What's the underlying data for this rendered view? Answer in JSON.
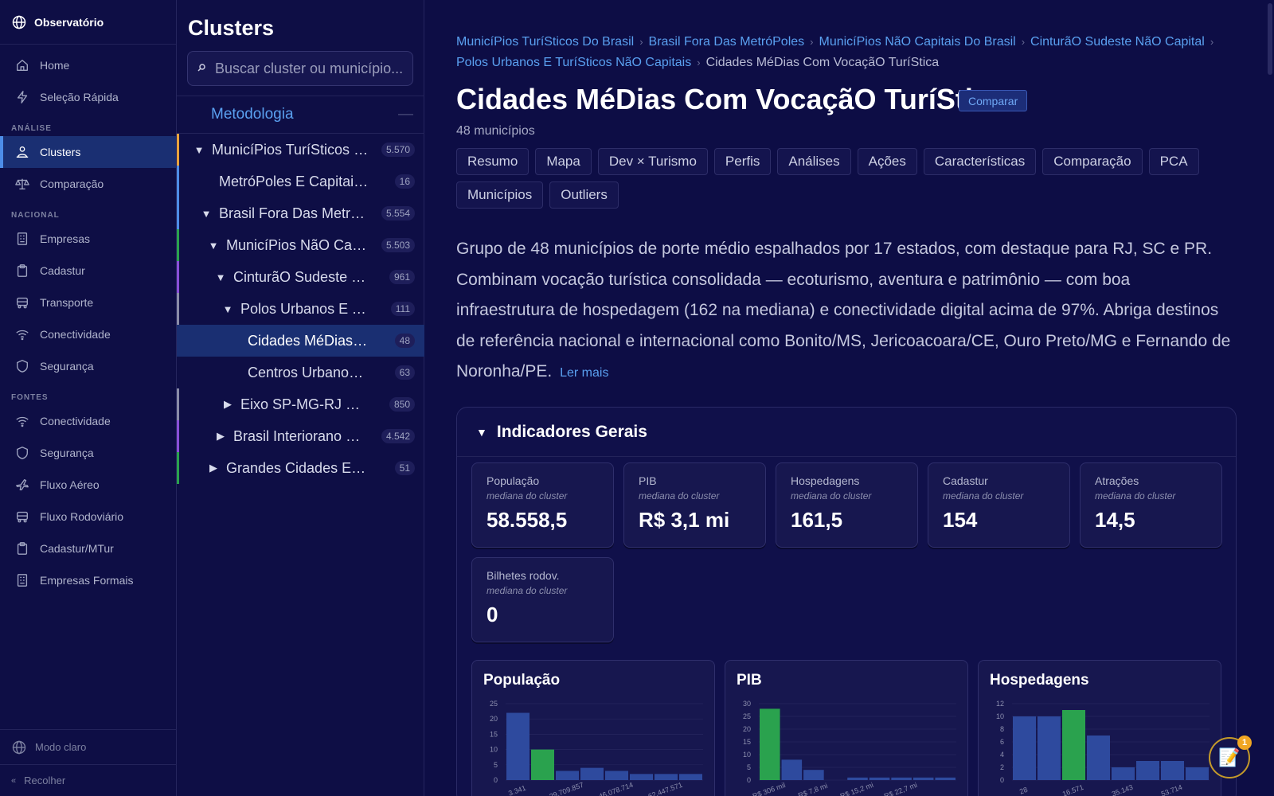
{
  "app": {
    "name": "Observatório"
  },
  "nav": {
    "top_items": [
      {
        "label": "Home",
        "icon": "home-icon"
      },
      {
        "label": "Seleção Rápida",
        "icon": "bolt-icon"
      }
    ],
    "section_analise": "ANÁLISE",
    "analise_items": [
      {
        "label": "Clusters",
        "icon": "clusters-icon",
        "active": true
      },
      {
        "label": "Comparação",
        "icon": "scale-icon"
      }
    ],
    "section_nacional": "NACIONAL",
    "nacional_items": [
      {
        "label": "Empresas",
        "icon": "building-icon"
      },
      {
        "label": "Cadastur",
        "icon": "clipboard-icon"
      },
      {
        "label": "Transporte",
        "icon": "bus-icon"
      },
      {
        "label": "Conectividade",
        "icon": "wifi-icon"
      },
      {
        "label": "Segurança",
        "icon": "shield-icon"
      }
    ],
    "section_fontes": "FONTES",
    "fontes_items": [
      {
        "label": "Conectividade",
        "icon": "wifi-icon"
      },
      {
        "label": "Segurança",
        "icon": "shield-icon"
      },
      {
        "label": "Fluxo Aéreo",
        "icon": "plane-icon"
      },
      {
        "label": "Fluxo Rodoviário",
        "icon": "bus-icon"
      },
      {
        "label": "Cadastur/MTur",
        "icon": "clipboard-icon"
      },
      {
        "label": "Empresas Formais",
        "icon": "building-icon"
      }
    ],
    "theme_toggle": "Modo claro",
    "collapse": "Recolher"
  },
  "clusters": {
    "title": "Clusters",
    "search_placeholder": "Buscar cluster ou município...",
    "methodology": "Metodologia",
    "tree": [
      {
        "label": "MunicíPios TuríSticos Do Brasil",
        "count": "5.570",
        "indent": 0,
        "arrow": "▼",
        "color": "#e8a33d"
      },
      {
        "label": "MetróPoles E Capitais Estaduais",
        "count": "16",
        "indent": 1,
        "arrow": "",
        "color": "#4d8de8"
      },
      {
        "label": "Brasil Fora Das MetróPoles",
        "count": "5.554",
        "indent": 1,
        "arrow": "▼",
        "color": "#4d8de8"
      },
      {
        "label": "MunicíPios NãO Capitais Do Brasil",
        "count": "5.503",
        "indent": 2,
        "arrow": "▼",
        "color": "#2aa24e"
      },
      {
        "label": "CinturãO Sudeste NãO Capital",
        "count": "961",
        "indent": 3,
        "arrow": "▼",
        "color": "#8a4fd8"
      },
      {
        "label": "Polos Urbanos E TuríSticos NãO Capitais",
        "count": "111",
        "indent": 4,
        "arrow": "▼",
        "color": "#8a8ca8"
      },
      {
        "label": "Cidades MéDias Com VocaçãO TuríStica",
        "count": "48",
        "indent": 5,
        "arrow": "",
        "color": "",
        "selected": true
      },
      {
        "label": "Centros Urbanos NãO Capitais",
        "count": "63",
        "indent": 5,
        "arrow": "",
        "color": ""
      },
      {
        "label": "Eixo SP-MG-RJ De Pequeno Porte",
        "count": "850",
        "indent": 4,
        "arrow": "▶",
        "color": "#8a8ca8"
      },
      {
        "label": "Brasil Interiorano Disperso",
        "count": "4.542",
        "indent": 3,
        "arrow": "▶",
        "color": "#8a4fd8"
      },
      {
        "label": "Grandes Cidades E Destinos",
        "count": "51",
        "indent": 2,
        "arrow": "▶",
        "color": "#2aa24e"
      }
    ]
  },
  "main": {
    "breadcrumbs": [
      "MunicíPios TuríSticos Do Brasil",
      "Brasil Fora Das MetróPoles",
      "MunicíPios NãO Capitais Do Brasil",
      "CinturãO Sudeste NãO Capital",
      "Polos Urbanos E TuríSticos NãO Capitais"
    ],
    "breadcrumb_current": "Cidades MéDias Com VocaçãO TuríStica",
    "title": "Cidades MéDias Com VocaçãO TuríStica",
    "compare_button": "Comparar",
    "count_label": "48 municípios",
    "tabs": [
      "Resumo",
      "Mapa",
      "Dev × Turismo",
      "Perfis",
      "Análises",
      "Ações",
      "Características",
      "Comparação",
      "PCA",
      "Municípios",
      "Outliers"
    ],
    "description": "Grupo de 48 municípios de porte médio espalhados por 17 estados, com destaque para RJ, SC e PR. Combinam vocação turística consolidada — ecoturismo, aventura e patrimônio — com boa infraestrutura de hospedagem (162 na mediana) e conectividade digital acima de 97%. Abriga destinos de referência nacional e internacional como Bonito/MS, Jericoacoara/CE, Ouro Preto/MG e Fernando de Noronha/PE.",
    "read_more": "Ler mais",
    "section_title": "Indicadores Gerais",
    "kpis": [
      {
        "label": "População",
        "sub": "mediana do cluster",
        "value": "58.558,5"
      },
      {
        "label": "PIB",
        "sub": "mediana do cluster",
        "value": "R$ 3,1 mi"
      },
      {
        "label": "Hospedagens",
        "sub": "mediana do cluster",
        "value": "161,5"
      },
      {
        "label": "Cadastur",
        "sub": "mediana do cluster",
        "value": "154"
      },
      {
        "label": "Atrações",
        "sub": "mediana do cluster",
        "value": "14,5"
      },
      {
        "label": "Bilhetes rodov.",
        "sub": "mediana do cluster",
        "value": "0"
      }
    ]
  },
  "chart_data": [
    {
      "type": "bar",
      "title": "População",
      "ylim": [
        0,
        25
      ],
      "yticks": [
        0,
        5,
        10,
        15,
        20,
        25
      ],
      "categories": [
        "3.341",
        "",
        "29.709.857",
        "",
        "46.078.714",
        "",
        "62.447.571",
        ""
      ],
      "values": [
        22,
        10,
        3,
        4,
        3,
        2,
        2,
        2
      ],
      "highlight_index": 1,
      "colors": {
        "bar": "#2e4a9e",
        "highlight": "#2aa24e"
      }
    },
    {
      "type": "bar",
      "title": "PIB",
      "ylim": [
        0,
        30
      ],
      "yticks": [
        0,
        5,
        10,
        15,
        20,
        25,
        30
      ],
      "categories": [
        "R$ 306 mil",
        "",
        "R$ 7,8 mi",
        "",
        "R$ 15,2 mi",
        "",
        "R$ 22,7 mi",
        "",
        ""
      ],
      "values": [
        28,
        8,
        4,
        0,
        1,
        1,
        1,
        1,
        1
      ],
      "highlight_index": 0,
      "colors": {
        "bar": "#2e4a9e",
        "highlight": "#2aa24e"
      }
    },
    {
      "type": "bar",
      "title": "Hospedagens",
      "ylim": [
        0,
        12
      ],
      "yticks": [
        0,
        2,
        4,
        6,
        8,
        10,
        12
      ],
      "categories": [
        "28",
        "",
        "16.571",
        "",
        "35.143",
        "",
        "53.714",
        ""
      ],
      "values": [
        10,
        10,
        11,
        7,
        2,
        3,
        3,
        2
      ],
      "highlight_index": 2,
      "colors": {
        "bar": "#2e4a9e",
        "highlight": "#2aa24e"
      }
    }
  ],
  "fab": {
    "icon": "notes-icon",
    "badge": "1"
  }
}
